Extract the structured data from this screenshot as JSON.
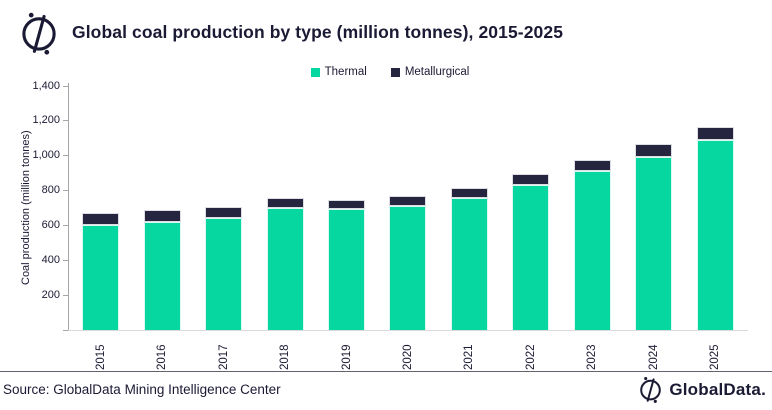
{
  "header": {
    "title": "Global coal production by type (million tonnes), 2015-2025"
  },
  "chart_data": {
    "type": "bar",
    "stacked": true,
    "title": "Global coal production by type (million tonnes), 2015-2025",
    "categories": [
      "2015",
      "2016",
      "2017",
      "2018",
      "2019",
      "2020",
      "2021",
      "2022",
      "2023",
      "2024",
      "2025"
    ],
    "series": [
      {
        "name": "Thermal",
        "color": "#06D6A0",
        "values": [
          605,
          622,
          643,
          700,
          692,
          712,
          760,
          835,
          912,
          995,
          1090
        ]
      },
      {
        "name": "Metallurgical",
        "color": "#262540",
        "values": [
          65,
          68,
          60,
          57,
          53,
          55,
          52,
          62,
          66,
          71,
          76
        ]
      }
    ],
    "xlabel": "",
    "ylabel": "Coal production (million tonnes)",
    "ylim": [
      0,
      1400
    ],
    "ytick_step": 200,
    "grid": false,
    "legend_position": "top"
  },
  "footer": {
    "source": "Source: GlobalData Mining Intelligence Center",
    "brand": "GlobalData."
  },
  "colors": {
    "thermal_green": "#06D6A0",
    "metallurgical_navy": "#262540",
    "text_navy": "#1B1A34",
    "axis_gray": "#A6A6A6",
    "baseline_gray": "#D9D9D9",
    "divider_gray": "#62626E"
  }
}
